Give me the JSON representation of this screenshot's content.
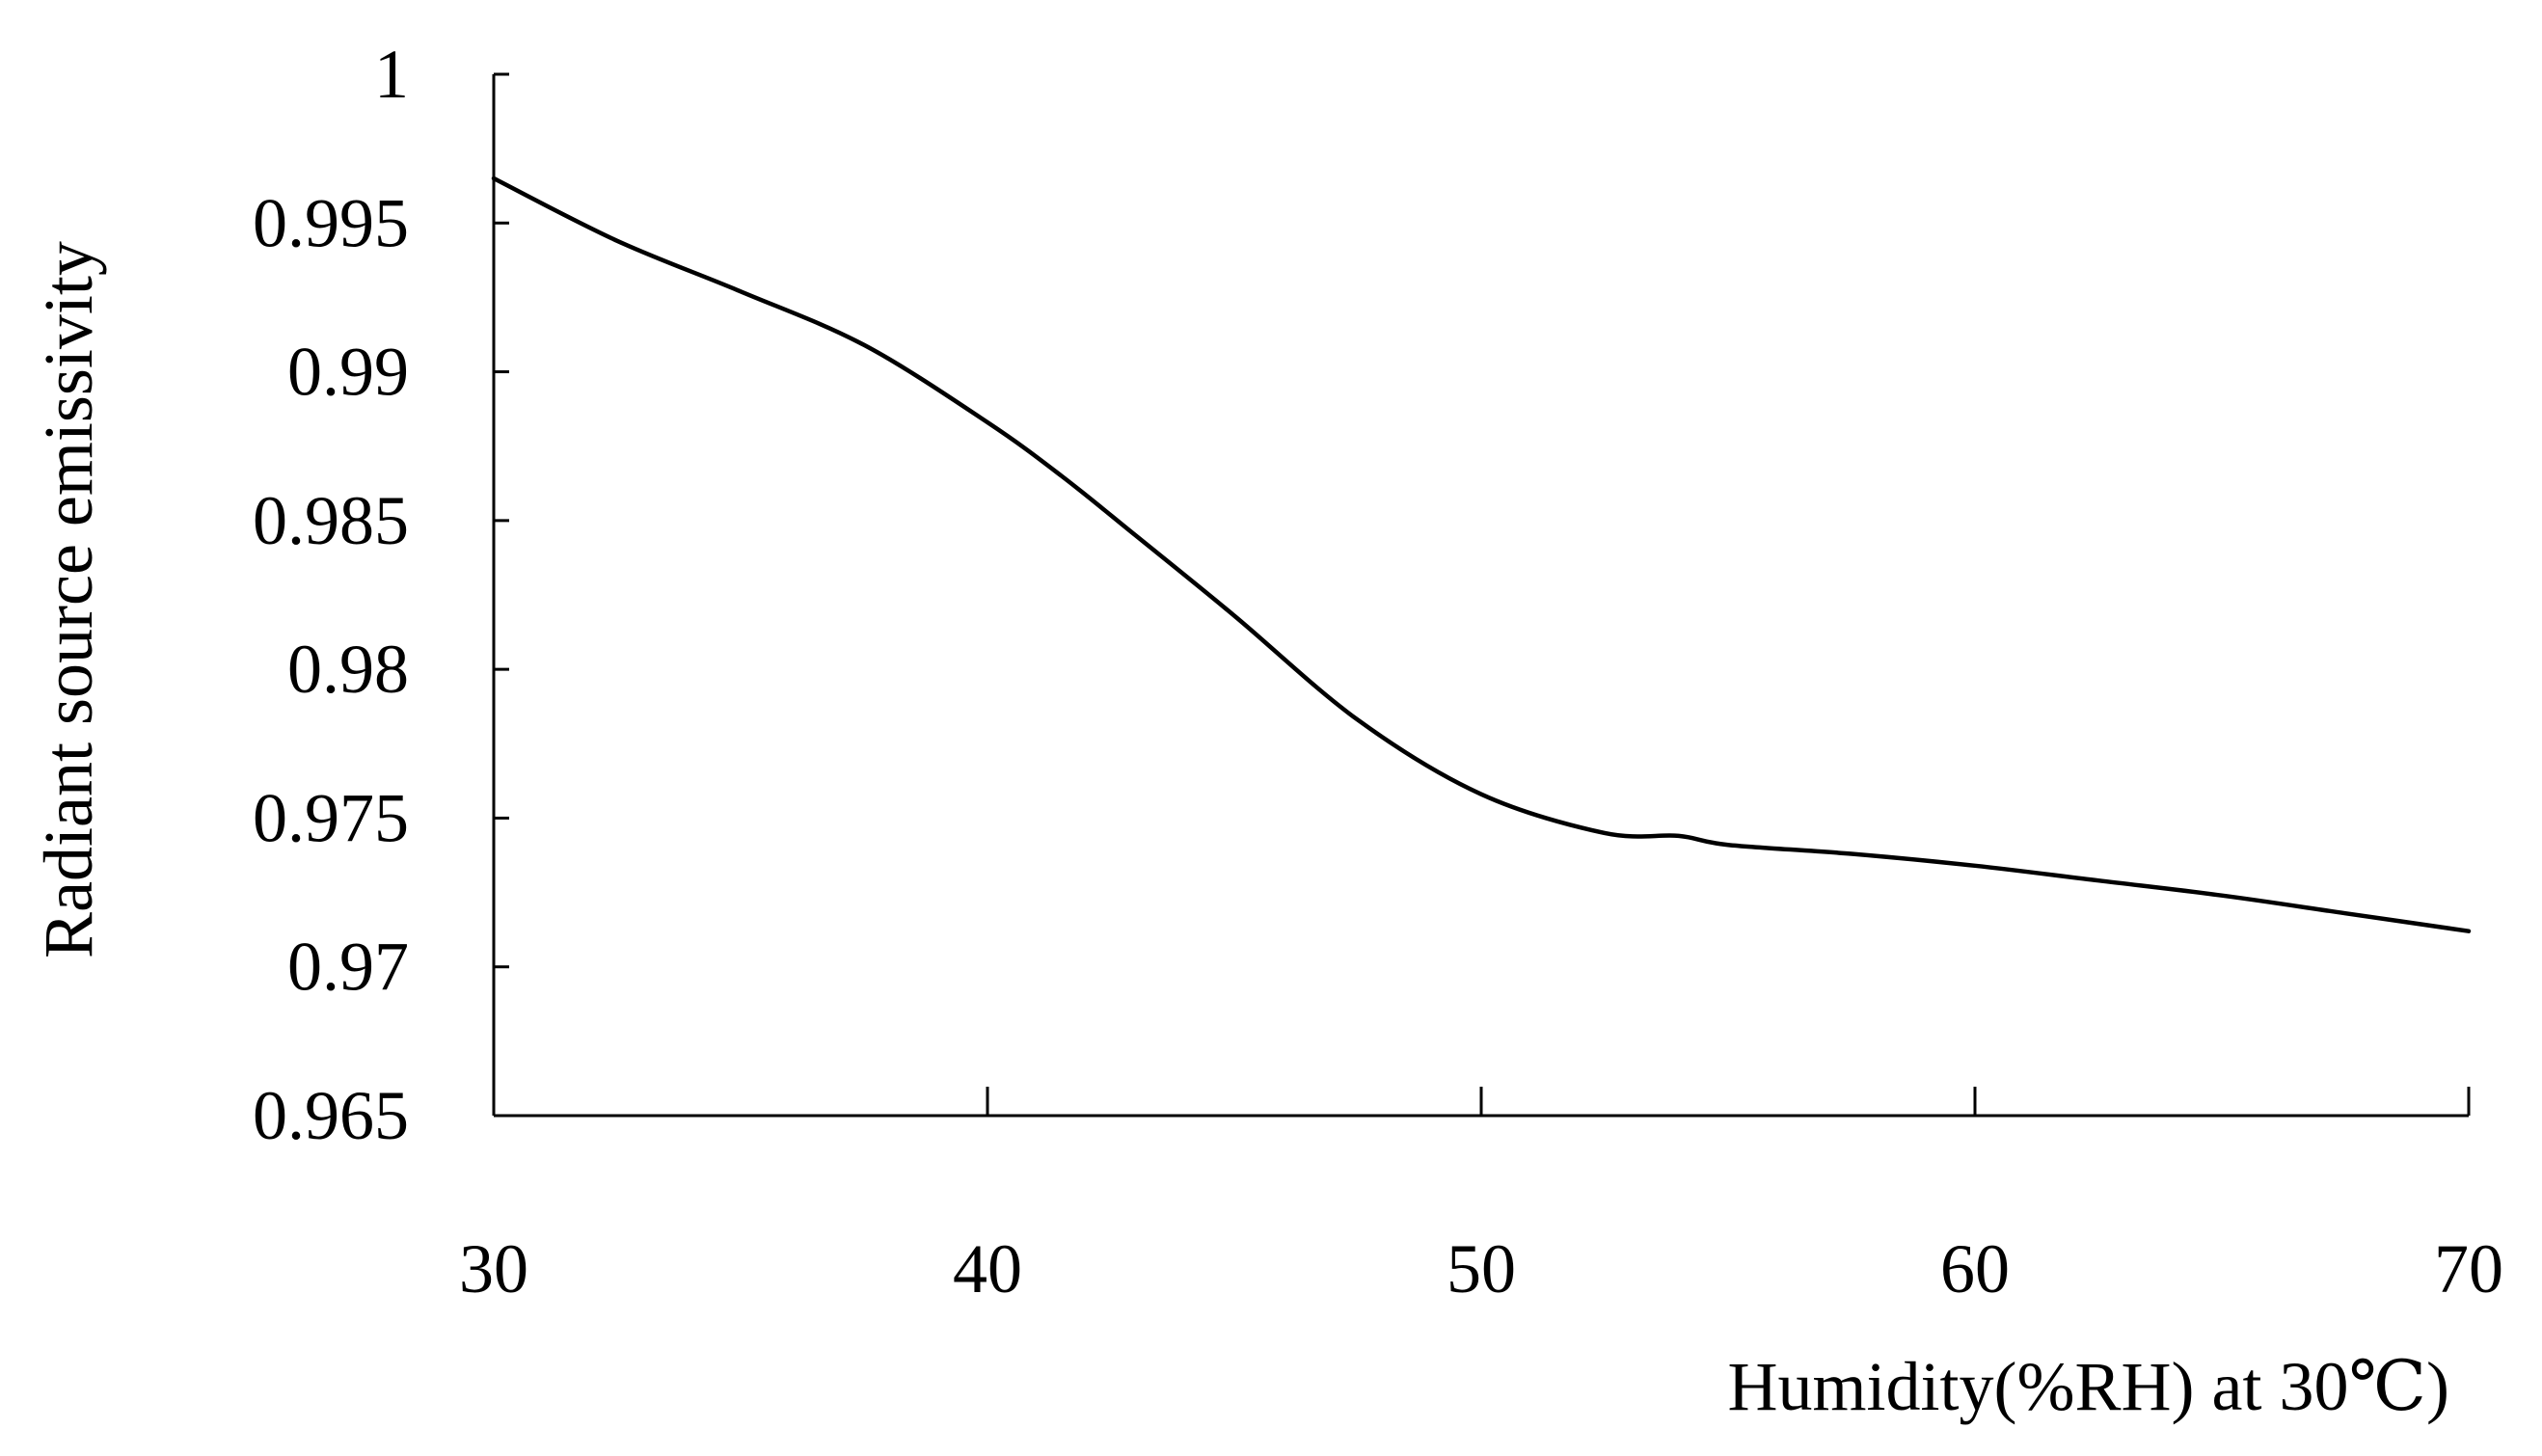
{
  "chart_data": {
    "type": "line",
    "title": "",
    "xlabel": "Humidity(%RH) at 30℃)",
    "ylabel": "Radiant source emissivity",
    "xlim": [
      30,
      70
    ],
    "ylim": [
      0.965,
      1
    ],
    "x_ticks": [
      30,
      40,
      50,
      60,
      70
    ],
    "x_tick_labels": [
      "30",
      "40",
      "50",
      "60",
      "70"
    ],
    "y_ticks": [
      0.965,
      0.97,
      0.975,
      0.98,
      0.985,
      0.99,
      0.995,
      1
    ],
    "y_tick_labels": [
      "0.965",
      "0.97",
      "0.975",
      "0.98",
      "0.985",
      "0.99",
      "0.995",
      "1"
    ],
    "grid": false,
    "legend": "none",
    "series": [
      {
        "color": "#000000",
        "x": [
          30,
          32.5,
          35,
          37.5,
          40,
          41.5,
          43,
          45,
          47.5,
          50,
          52.5,
          54,
          55,
          57.5,
          60,
          62.5,
          65,
          67.5,
          70
        ],
        "y": [
          0.9965,
          0.9944,
          0.9927,
          0.9909,
          0.9883,
          0.9865,
          0.9845,
          0.9818,
          0.9783,
          0.9758,
          0.9745,
          0.9744,
          0.9741,
          0.9738,
          0.9734,
          0.9729,
          0.9724,
          0.9718,
          0.9712
        ]
      }
    ]
  }
}
